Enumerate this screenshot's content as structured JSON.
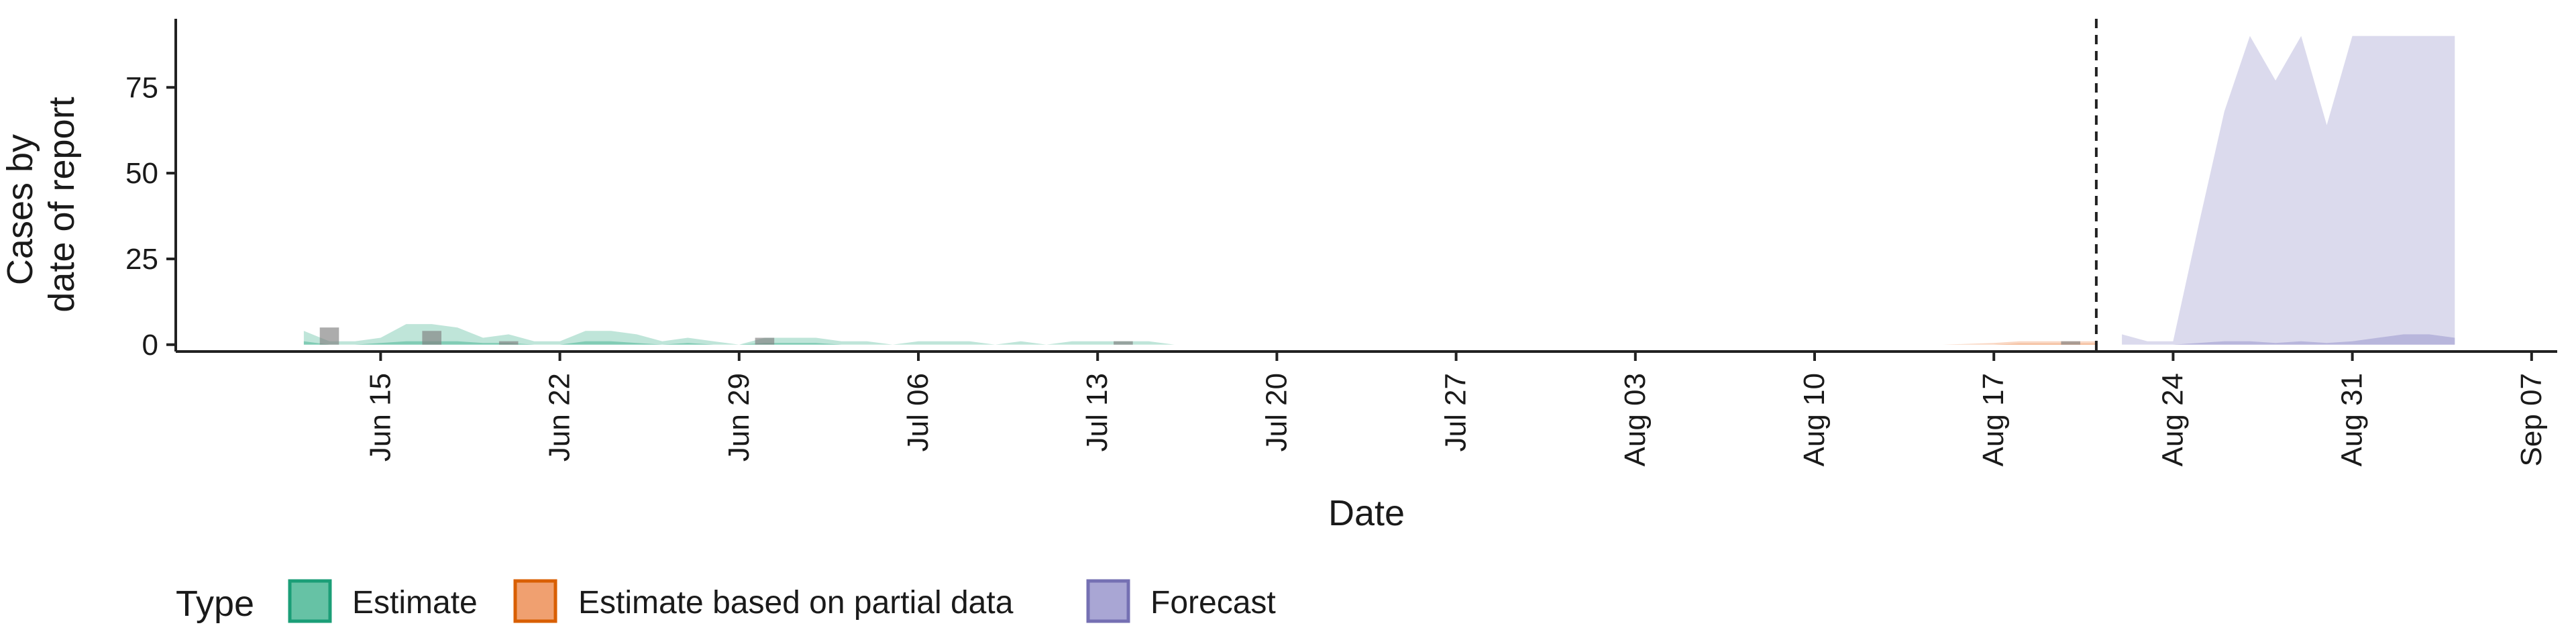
{
  "chart_data": {
    "type": "area",
    "xlabel": "Date",
    "ylabel_lines": [
      "Cases by",
      "date of report"
    ],
    "ylim": [
      -2,
      95
    ],
    "y_ticks": [
      0,
      25,
      50,
      75
    ],
    "x_range": [
      "2020-06-07",
      "2020-09-08"
    ],
    "x_ticks": [
      {
        "date": "2020-06-15",
        "label": "Jun 15"
      },
      {
        "date": "2020-06-22",
        "label": "Jun 22"
      },
      {
        "date": "2020-06-29",
        "label": "Jun 29"
      },
      {
        "date": "2020-07-06",
        "label": "Jul 06"
      },
      {
        "date": "2020-07-13",
        "label": "Jul 13"
      },
      {
        "date": "2020-07-20",
        "label": "Jul 20"
      },
      {
        "date": "2020-07-27",
        "label": "Jul 27"
      },
      {
        "date": "2020-08-03",
        "label": "Aug 03"
      },
      {
        "date": "2020-08-10",
        "label": "Aug 10"
      },
      {
        "date": "2020-08-17",
        "label": "Aug 17"
      },
      {
        "date": "2020-08-24",
        "label": "Aug 24"
      },
      {
        "date": "2020-08-31",
        "label": "Aug 31"
      },
      {
        "date": "2020-09-07",
        "label": "Sep 07"
      }
    ],
    "forecast_start_line": "2020-08-21",
    "legend": {
      "title": "Type",
      "position": "bottom",
      "items": [
        {
          "label": "Estimate",
          "fill": "#66c2a5",
          "border": "#1b9e77"
        },
        {
          "label": "Estimate based on partial data",
          "fill": "#f0a070",
          "border": "#d95f02"
        },
        {
          "label": "Forecast",
          "fill": "#a9a6d4",
          "border": "#7570b3"
        }
      ]
    },
    "colors": {
      "Estimate": "#66c2a5",
      "Estimate based on partial data": "#f0a070",
      "Forecast": "#a9a6d4",
      "observed_bar": "#808080"
    },
    "series": [
      {
        "name": "Estimate",
        "dates": [
          "2020-06-12",
          "2020-06-13",
          "2020-06-14",
          "2020-06-15",
          "2020-06-16",
          "2020-06-17",
          "2020-06-18",
          "2020-06-19",
          "2020-06-20",
          "2020-06-21",
          "2020-06-22",
          "2020-06-23",
          "2020-06-24",
          "2020-06-25",
          "2020-06-26",
          "2020-06-27",
          "2020-06-28",
          "2020-06-29",
          "2020-06-30",
          "2020-07-01",
          "2020-07-02",
          "2020-07-03",
          "2020-07-04",
          "2020-07-05",
          "2020-07-06",
          "2020-07-07",
          "2020-07-08",
          "2020-07-09",
          "2020-07-10",
          "2020-07-11",
          "2020-07-12",
          "2020-07-13",
          "2020-07-14",
          "2020-07-15",
          "2020-07-16",
          "2020-07-20",
          "2020-07-27",
          "2020-08-03",
          "2020-08-08"
        ],
        "outer_upper": [
          4,
          1,
          1,
          2,
          6,
          6,
          5,
          2,
          3,
          1,
          1,
          4,
          4,
          3,
          1,
          2,
          1,
          0,
          2,
          2,
          2,
          1,
          1,
          0,
          1,
          1,
          1,
          0,
          1,
          0,
          1,
          1,
          1,
          1,
          0,
          0,
          0,
          0,
          0
        ],
        "outer_lower": [
          0,
          0,
          0,
          0,
          0,
          0,
          0,
          0,
          0,
          0,
          0,
          0,
          0,
          0,
          0,
          0,
          0,
          0,
          0,
          0,
          0,
          0,
          0,
          0,
          0,
          0,
          0,
          0,
          0,
          0,
          0,
          0,
          0,
          0,
          0,
          0,
          0,
          0,
          0
        ],
        "inner_upper": [
          1,
          0,
          0,
          0.5,
          1,
          1,
          1,
          0.5,
          0.5,
          0,
          0,
          1,
          1,
          0.5,
          0,
          0.5,
          0,
          0,
          0.5,
          0.5,
          0.5,
          0,
          0,
          0,
          0,
          0,
          0,
          0,
          0,
          0,
          0,
          0,
          0,
          0,
          0,
          0,
          0,
          0,
          0
        ],
        "inner_lower": [
          0,
          0,
          0,
          0,
          0,
          0,
          0,
          0,
          0,
          0,
          0,
          0,
          0,
          0,
          0,
          0,
          0,
          0,
          0,
          0,
          0,
          0,
          0,
          0,
          0,
          0,
          0,
          0,
          0,
          0,
          0,
          0,
          0,
          0,
          0,
          0,
          0,
          0,
          0
        ]
      },
      {
        "name": "Estimate based on partial data",
        "dates": [
          "2020-08-09",
          "2020-08-12",
          "2020-08-15",
          "2020-08-17",
          "2020-08-18",
          "2020-08-19",
          "2020-08-20",
          "2020-08-21"
        ],
        "outer_upper": [
          0,
          0,
          0,
          0.5,
          1,
          1,
          1,
          1
        ],
        "outer_lower": [
          0,
          0,
          0,
          0,
          0,
          0,
          0,
          0
        ],
        "inner_upper": [
          0,
          0,
          0,
          0,
          0.3,
          0.3,
          0.3,
          0.3
        ],
        "inner_lower": [
          0,
          0,
          0,
          0,
          0,
          0,
          0,
          0
        ]
      },
      {
        "name": "Forecast",
        "dates": [
          "2020-08-22",
          "2020-08-23",
          "2020-08-24",
          "2020-08-25",
          "2020-08-26",
          "2020-08-27",
          "2020-08-28",
          "2020-08-29",
          "2020-08-30",
          "2020-08-31",
          "2020-09-01",
          "2020-09-02",
          "2020-09-03",
          "2020-09-04"
        ],
        "outer_upper": [
          3,
          1,
          1,
          35,
          68,
          90,
          77,
          90,
          64,
          90,
          90,
          90,
          90,
          90
        ],
        "outer_lower": [
          0,
          0,
          0,
          0,
          0,
          0,
          0,
          0,
          0,
          0,
          0,
          0,
          0,
          0
        ],
        "inner_upper": [
          0,
          0,
          0,
          0.5,
          1,
          1,
          0.5,
          1,
          0.5,
          1,
          2,
          3,
          3,
          2
        ],
        "inner_lower": [
          0,
          0,
          0,
          0,
          0,
          0,
          0,
          0,
          0,
          0,
          0,
          0,
          0,
          0
        ]
      }
    ],
    "observed_bars": [
      {
        "date": "2020-06-13",
        "value": 5
      },
      {
        "date": "2020-06-17",
        "value": 4
      },
      {
        "date": "2020-06-20",
        "value": 1
      },
      {
        "date": "2020-06-30",
        "value": 2
      },
      {
        "date": "2020-07-14",
        "value": 1
      },
      {
        "date": "2020-08-20",
        "value": 1
      }
    ]
  }
}
